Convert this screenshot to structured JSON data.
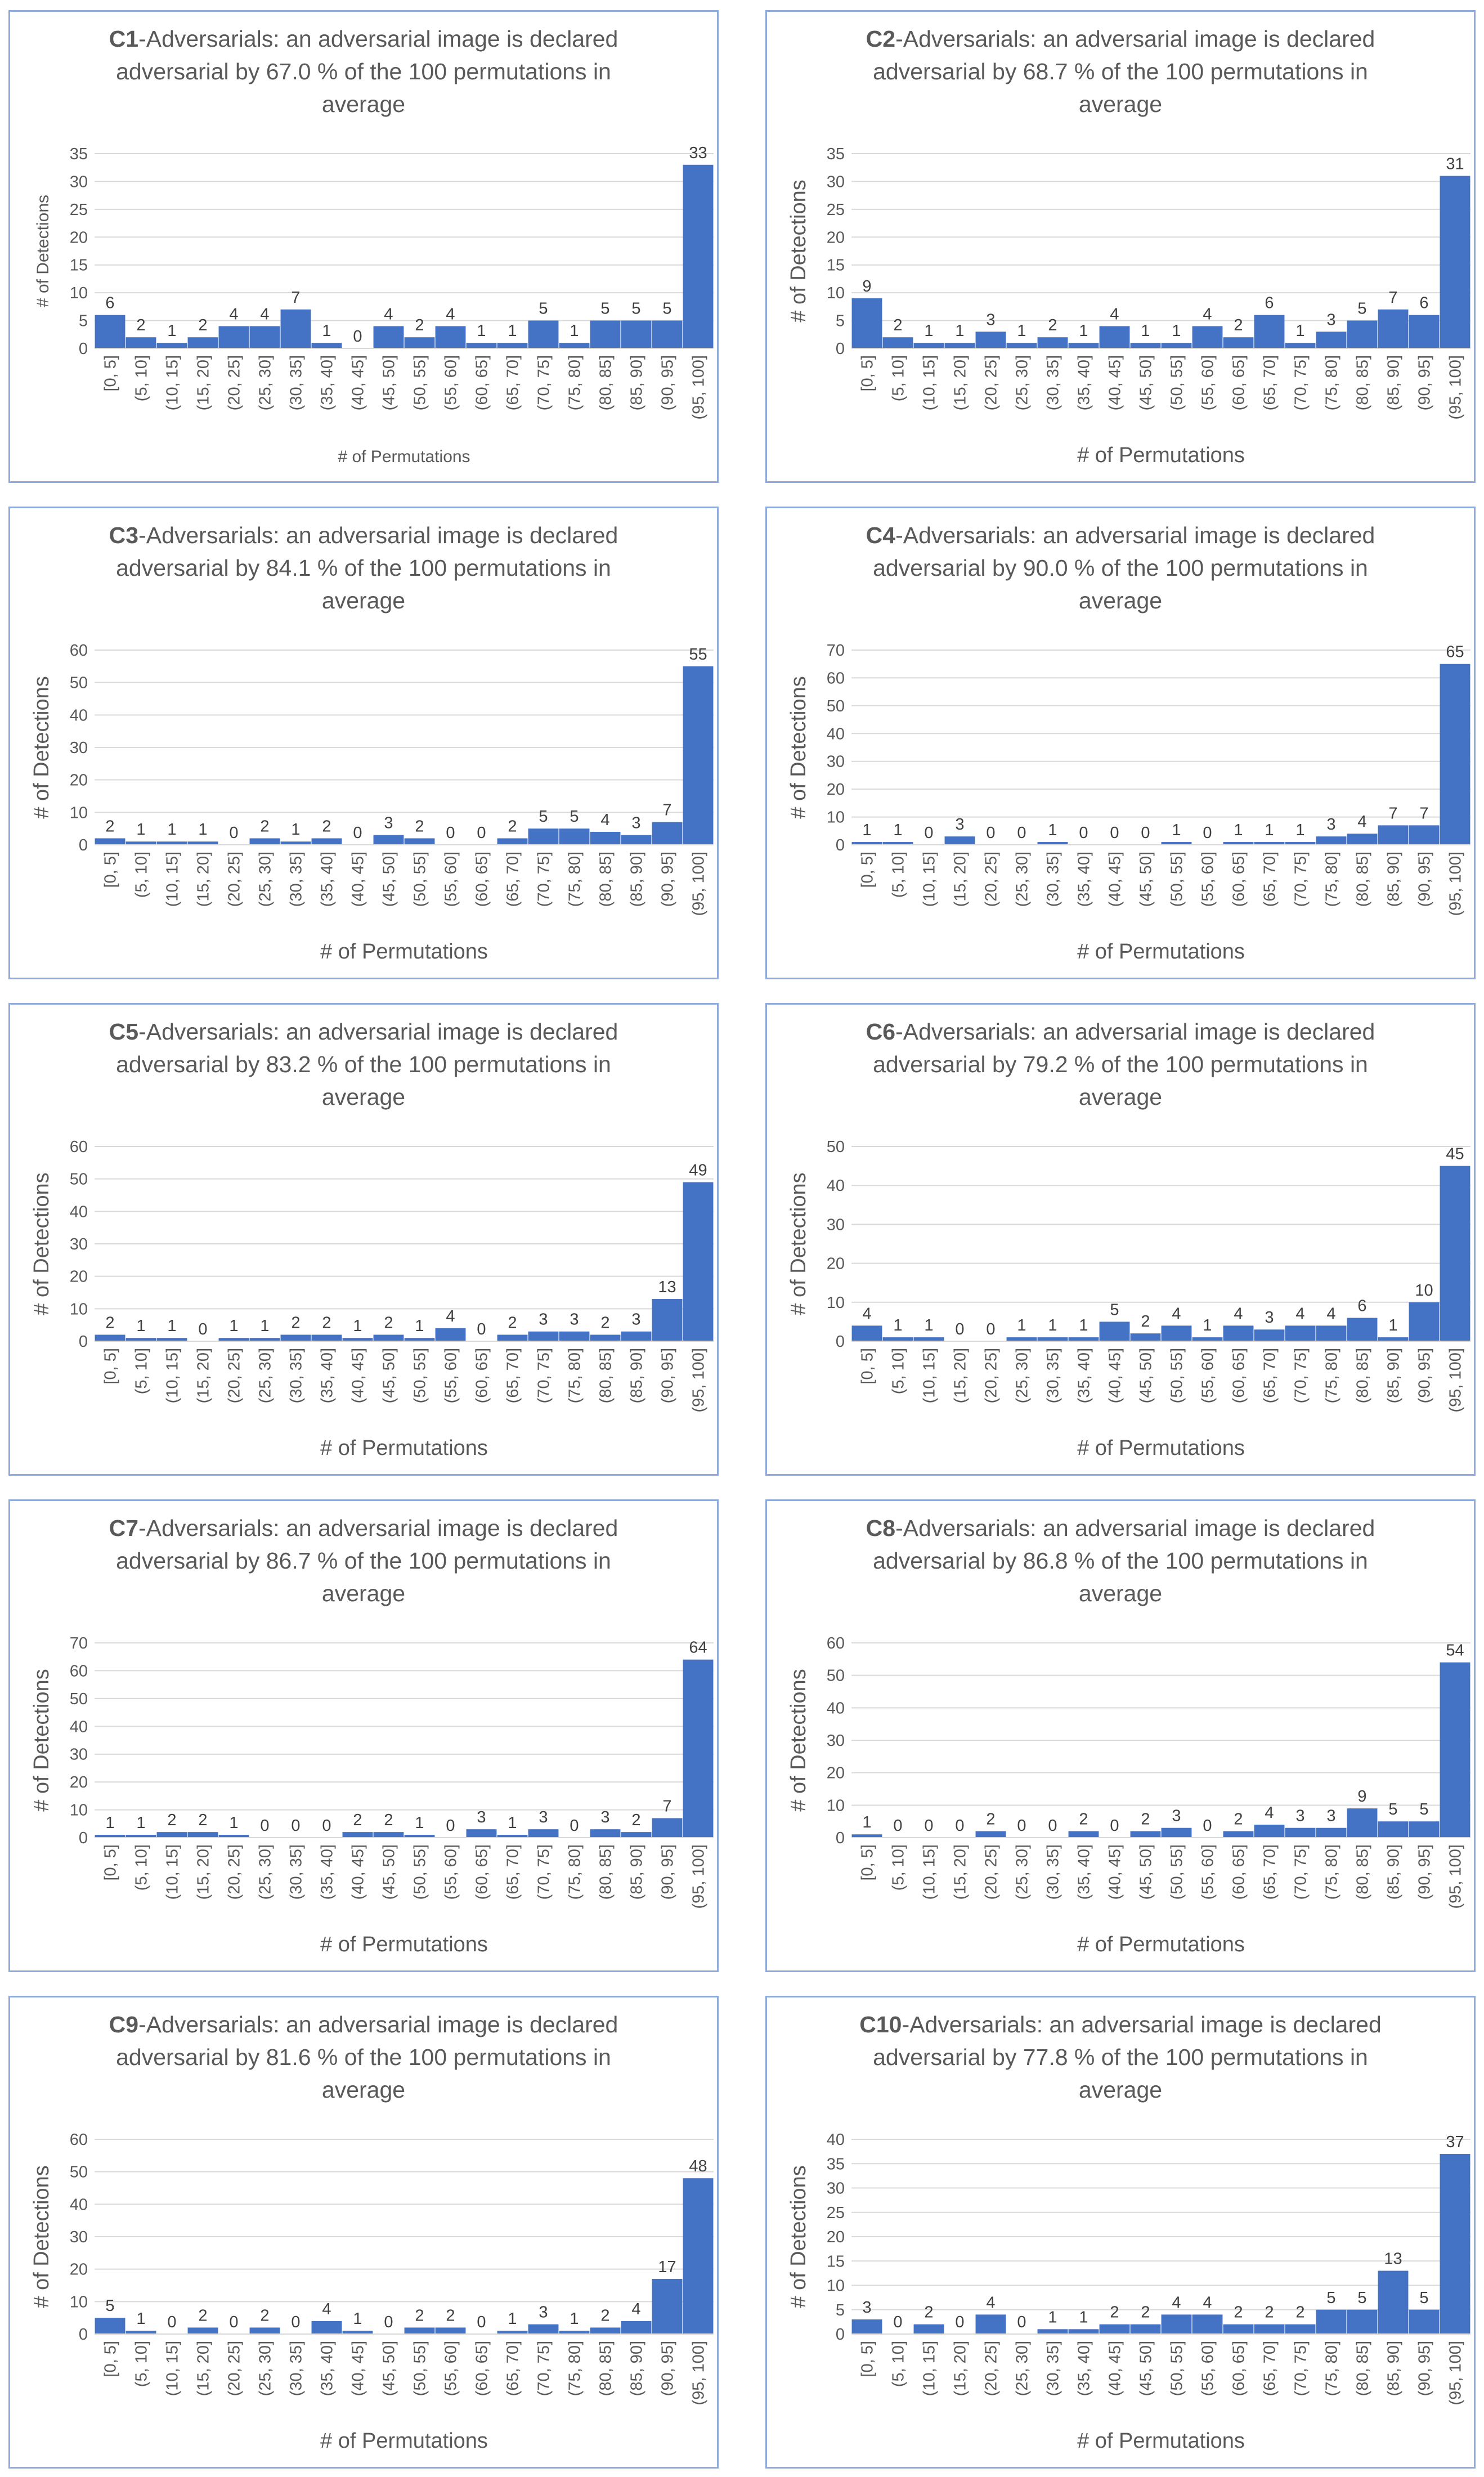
{
  "style": {
    "bar_color": "#4472c4",
    "grid_color": "#d9d9d9",
    "border_color": "#8eaadb",
    "text_color": "#595959"
  },
  "chart_data": [
    {
      "type": "bar",
      "id": "C1",
      "title_bold": "C1",
      "title_line1": "-Adversarials: an adversarial image is declared",
      "title_line2": "adversarial by 67.0 % of the 100 permutations in",
      "title_line3": "average",
      "xlabel": "# of Permutations",
      "ylabel": "# of Detections",
      "ylim": [
        0,
        35
      ],
      "yticks": [
        0,
        5,
        10,
        15,
        20,
        25,
        30,
        35
      ],
      "categories": [
        "[0, 5]",
        "(5, 10]",
        "(10, 15]",
        "(15, 20]",
        "(20, 25]",
        "(25, 30]",
        "(30, 35]",
        "(35, 40]",
        "(40, 45]",
        "(45, 50]",
        "(50, 55]",
        "(55, 60]",
        "(60, 65]",
        "(65, 70]",
        "(70, 75]",
        "(75, 80]",
        "(80, 85]",
        "(85, 90]",
        "(90, 95]",
        "(95, 100]"
      ],
      "values": [
        6,
        2,
        1,
        2,
        4,
        4,
        7,
        1,
        0,
        4,
        2,
        4,
        1,
        1,
        5,
        1,
        5,
        5,
        5,
        33
      ]
    },
    {
      "type": "bar",
      "id": "C2",
      "title_bold": "C2",
      "title_line1": "-Adversarials: an adversarial image is declared",
      "title_line2": "adversarial by 68.7 % of the 100 permutations in",
      "title_line3": "average",
      "xlabel": "# of Permutations",
      "ylabel": "# of Detections",
      "ylim": [
        0,
        35
      ],
      "yticks": [
        0,
        5,
        10,
        15,
        20,
        25,
        30,
        35
      ],
      "categories": [
        "[0, 5]",
        "(5, 10]",
        "(10, 15]",
        "(15, 20]",
        "(20, 25]",
        "(25, 30]",
        "(30, 35]",
        "(35, 40]",
        "(40, 45]",
        "(45, 50]",
        "(50, 55]",
        "(55, 60]",
        "(60, 65]",
        "(65, 70]",
        "(70, 75]",
        "(75, 80]",
        "(80, 85]",
        "(85, 90]",
        "(90, 95]",
        "(95, 100]"
      ],
      "values": [
        9,
        2,
        1,
        1,
        3,
        1,
        2,
        1,
        4,
        1,
        1,
        4,
        2,
        6,
        1,
        3,
        5,
        7,
        6,
        31
      ]
    },
    {
      "type": "bar",
      "id": "C3",
      "title_bold": "C3",
      "title_line1": "-Adversarials: an adversarial image is declared",
      "title_line2": "adversarial by 84.1 % of the 100 permutations in",
      "title_line3": "average",
      "xlabel": "# of Permutations",
      "ylabel": "# of Detections",
      "ylim": [
        0,
        60
      ],
      "yticks": [
        0,
        10,
        20,
        30,
        40,
        50,
        60
      ],
      "categories": [
        "[0, 5]",
        "(5, 10]",
        "(10, 15]",
        "(15, 20]",
        "(20, 25]",
        "(25, 30]",
        "(30, 35]",
        "(35, 40]",
        "(40, 45]",
        "(45, 50]",
        "(50, 55]",
        "(55, 60]",
        "(60, 65]",
        "(65, 70]",
        "(70, 75]",
        "(75, 80]",
        "(80, 85]",
        "(85, 90]",
        "(90, 95]",
        "(95, 100]"
      ],
      "values": [
        2,
        1,
        1,
        1,
        0,
        2,
        1,
        2,
        0,
        3,
        2,
        0,
        0,
        2,
        5,
        5,
        4,
        3,
        7,
        55
      ]
    },
    {
      "type": "bar",
      "id": "C4",
      "title_bold": "C4",
      "title_line1": "-Adversarials: an adversarial image is declared",
      "title_line2": "adversarial by 90.0 % of the 100 permutations in",
      "title_line3": "average",
      "xlabel": "# of Permutations",
      "ylabel": "# of Detections",
      "ylim": [
        0,
        70
      ],
      "yticks": [
        0,
        10,
        20,
        30,
        40,
        50,
        60,
        70
      ],
      "categories": [
        "[0, 5]",
        "(5, 10]",
        "(10, 15]",
        "(15, 20]",
        "(20, 25]",
        "(25, 30]",
        "(30, 35]",
        "(35, 40]",
        "(40, 45]",
        "(45, 50]",
        "(50, 55]",
        "(55, 60]",
        "(60, 65]",
        "(65, 70]",
        "(70, 75]",
        "(75, 80]",
        "(80, 85]",
        "(85, 90]",
        "(90, 95]",
        "(95, 100]"
      ],
      "values": [
        1,
        1,
        0,
        3,
        0,
        0,
        1,
        0,
        0,
        0,
        1,
        0,
        1,
        1,
        1,
        3,
        4,
        7,
        7,
        65
      ]
    },
    {
      "type": "bar",
      "id": "C5",
      "title_bold": "C5",
      "title_line1": "-Adversarials: an adversarial image is declared",
      "title_line2": "adversarial by 83.2 % of the 100 permutations in",
      "title_line3": "average",
      "xlabel": "# of Permutations",
      "ylabel": "# of Detections",
      "ylim": [
        0,
        60
      ],
      "yticks": [
        0,
        10,
        20,
        30,
        40,
        50,
        60
      ],
      "categories": [
        "[0, 5]",
        "(5, 10]",
        "(10, 15]",
        "(15, 20]",
        "(20, 25]",
        "(25, 30]",
        "(30, 35]",
        "(35, 40]",
        "(40, 45]",
        "(45, 50]",
        "(50, 55]",
        "(55, 60]",
        "(60, 65]",
        "(65, 70]",
        "(70, 75]",
        "(75, 80]",
        "(80, 85]",
        "(85, 90]",
        "(90, 95]",
        "(95, 100]"
      ],
      "values": [
        2,
        1,
        1,
        0,
        1,
        1,
        2,
        2,
        1,
        2,
        1,
        4,
        0,
        2,
        3,
        3,
        2,
        3,
        13,
        49
      ]
    },
    {
      "type": "bar",
      "id": "C6",
      "title_bold": "C6",
      "title_line1": "-Adversarials: an adversarial image is declared",
      "title_line2": "adversarial by 79.2 % of the 100 permutations in",
      "title_line3": "average",
      "xlabel": "# of Permutations",
      "ylabel": "# of Detections",
      "ylim": [
        0,
        50
      ],
      "yticks": [
        0,
        10,
        20,
        30,
        40,
        50
      ],
      "categories": [
        "[0, 5]",
        "(5, 10]",
        "(10, 15]",
        "(15, 20]",
        "(20, 25]",
        "(25, 30]",
        "(30, 35]",
        "(35, 40]",
        "(40, 45]",
        "(45, 50]",
        "(50, 55]",
        "(55, 60]",
        "(60, 65]",
        "(65, 70]",
        "(70, 75]",
        "(75, 80]",
        "(80, 85]",
        "(85, 90]",
        "(90, 95]",
        "(95, 100]"
      ],
      "values": [
        4,
        1,
        1,
        0,
        0,
        1,
        1,
        1,
        5,
        2,
        4,
        1,
        4,
        3,
        4,
        4,
        6,
        1,
        10,
        45
      ]
    },
    {
      "type": "bar",
      "id": "C7",
      "title_bold": "C7",
      "title_line1": "-Adversarials: an adversarial image is declared",
      "title_line2": "adversarial by 86.7 % of the 100 permutations in",
      "title_line3": "average",
      "xlabel": "# of Permutations",
      "ylabel": "# of Detections",
      "ylim": [
        0,
        70
      ],
      "yticks": [
        0,
        10,
        20,
        30,
        40,
        50,
        60,
        70
      ],
      "categories": [
        "[0, 5]",
        "(5, 10]",
        "(10, 15]",
        "(15, 20]",
        "(20, 25]",
        "(25, 30]",
        "(30, 35]",
        "(35, 40]",
        "(40, 45]",
        "(45, 50]",
        "(50, 55]",
        "(55, 60]",
        "(60, 65]",
        "(65, 70]",
        "(70, 75]",
        "(75, 80]",
        "(80, 85]",
        "(85, 90]",
        "(90, 95]",
        "(95, 100]"
      ],
      "values": [
        1,
        1,
        2,
        2,
        1,
        0,
        0,
        0,
        2,
        2,
        1,
        0,
        3,
        1,
        3,
        0,
        3,
        2,
        7,
        64
      ]
    },
    {
      "type": "bar",
      "id": "C8",
      "title_bold": "C8",
      "title_line1": "-Adversarials: an adversarial image is declared",
      "title_line2": "adversarial by 86.8 % of the 100 permutations in",
      "title_line3": "average",
      "xlabel": "# of Permutations",
      "ylabel": "# of Detections",
      "ylim": [
        0,
        60
      ],
      "yticks": [
        0,
        10,
        20,
        30,
        40,
        50,
        60
      ],
      "categories": [
        "[0, 5]",
        "(5, 10]",
        "(10, 15]",
        "(15, 20]",
        "(20, 25]",
        "(25, 30]",
        "(30, 35]",
        "(35, 40]",
        "(40, 45]",
        "(45, 50]",
        "(50, 55]",
        "(55, 60]",
        "(60, 65]",
        "(65, 70]",
        "(70, 75]",
        "(75, 80]",
        "(80, 85]",
        "(85, 90]",
        "(90, 95]",
        "(95, 100]"
      ],
      "values": [
        1,
        0,
        0,
        0,
        2,
        0,
        0,
        2,
        0,
        2,
        3,
        0,
        2,
        4,
        3,
        3,
        9,
        5,
        5,
        54
      ]
    },
    {
      "type": "bar",
      "id": "C9",
      "title_bold": "C9",
      "title_line1": "-Adversarials: an adversarial image is declared",
      "title_line2": "adversarial by 81.6 % of the 100 permutations in",
      "title_line3": "average",
      "xlabel": "# of Permutations",
      "ylabel": "# of Detections",
      "ylim": [
        0,
        60
      ],
      "yticks": [
        0,
        10,
        20,
        30,
        40,
        50,
        60
      ],
      "categories": [
        "[0, 5]",
        "(5, 10]",
        "(10, 15]",
        "(15, 20]",
        "(20, 25]",
        "(25, 30]",
        "(30, 35]",
        "(35, 40]",
        "(40, 45]",
        "(45, 50]",
        "(50, 55]",
        "(55, 60]",
        "(60, 65]",
        "(65, 70]",
        "(70, 75]",
        "(75, 80]",
        "(80, 85]",
        "(85, 90]",
        "(90, 95]",
        "(95, 100]"
      ],
      "values": [
        5,
        1,
        0,
        2,
        0,
        2,
        0,
        4,
        1,
        0,
        2,
        2,
        0,
        1,
        3,
        1,
        2,
        4,
        17,
        48
      ]
    },
    {
      "type": "bar",
      "id": "C10",
      "title_bold": "C10",
      "title_line1": "-Adversarials: an adversarial image is declared",
      "title_line2": "adversarial by 77.8 % of the 100 permutations in",
      "title_line3": "average",
      "xlabel": "# of Permutations",
      "ylabel": "# of Detections",
      "ylim": [
        0,
        40
      ],
      "yticks": [
        0,
        5,
        10,
        15,
        20,
        25,
        30,
        35,
        40
      ],
      "categories": [
        "[0, 5]",
        "(5, 10]",
        "(10, 15]",
        "(15, 20]",
        "(20, 25]",
        "(25, 30]",
        "(30, 35]",
        "(35, 40]",
        "(40, 45]",
        "(45, 50]",
        "(50, 55]",
        "(55, 60]",
        "(60, 65]",
        "(65, 70]",
        "(70, 75]",
        "(75, 80]",
        "(80, 85]",
        "(85, 90]",
        "(90, 95]",
        "(95, 100]"
      ],
      "values": [
        3,
        0,
        2,
        0,
        4,
        0,
        1,
        1,
        2,
        2,
        4,
        4,
        2,
        2,
        2,
        5,
        5,
        13,
        5,
        37
      ]
    }
  ]
}
